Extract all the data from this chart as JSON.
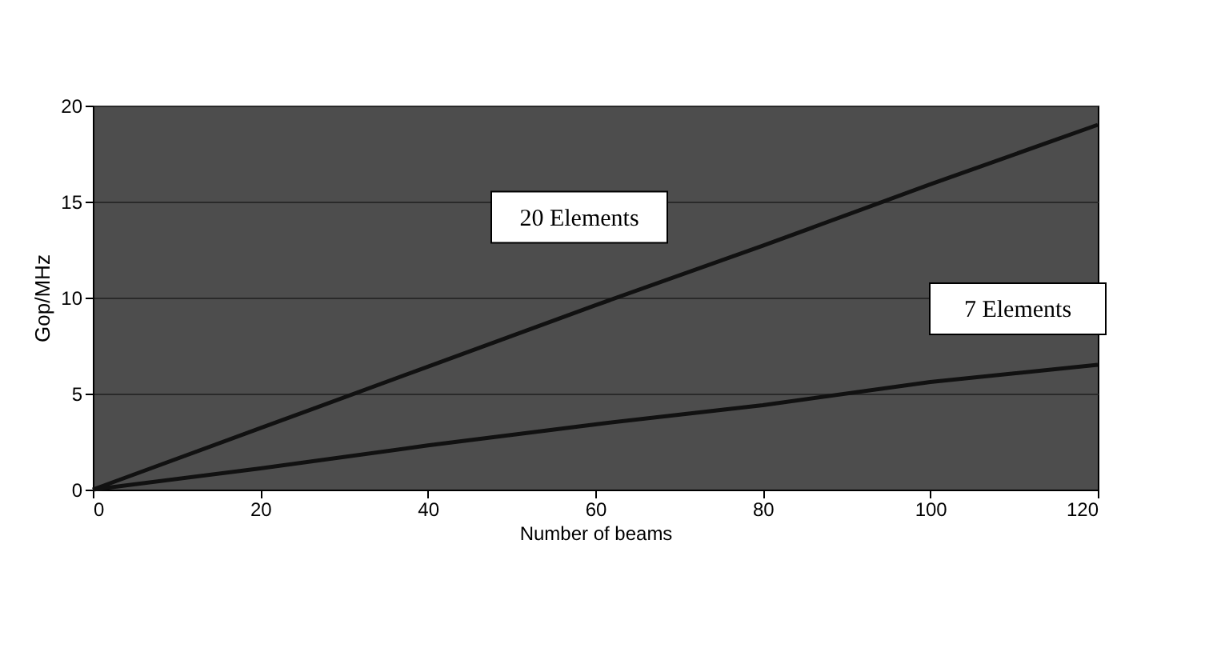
{
  "chart_data": {
    "type": "line",
    "xlabel": "Number of beams",
    "ylabel": "Gop/MHz",
    "x": [
      0,
      20,
      40,
      60,
      80,
      100,
      120
    ],
    "series": [
      {
        "name": "20 Elements",
        "color": "#111111",
        "values": [
          0,
          3.2,
          6.4,
          9.6,
          12.7,
          15.9,
          19.0
        ]
      },
      {
        "name": "7 Elements",
        "color": "#111111",
        "values": [
          0,
          1.1,
          2.3,
          3.4,
          4.4,
          5.6,
          6.5
        ]
      }
    ],
    "xlim": [
      0,
      120
    ],
    "xticks": [
      0,
      20,
      40,
      60,
      80,
      100,
      120
    ],
    "ylim": [
      0,
      20
    ],
    "yticks": [
      0,
      5,
      10,
      15,
      20
    ],
    "grid": "y",
    "legend": false,
    "marker": "none",
    "line_style": "solid"
  }
}
